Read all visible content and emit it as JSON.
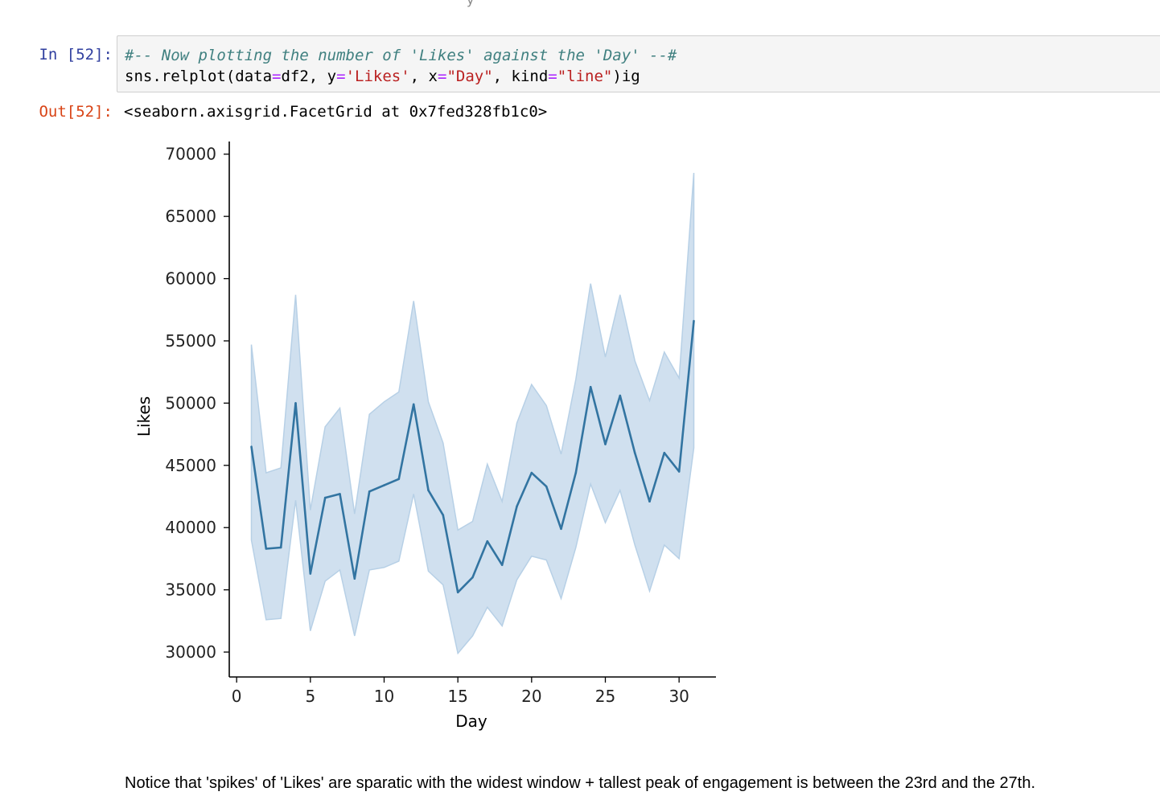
{
  "input_cell": {
    "prompt": "In [52]:",
    "comment": "#-- Now plotting the number of 'Likes' against the 'Day' --#",
    "code_tokens": {
      "t1": "sns.relplot(data",
      "t2": "=",
      "t3": "df2, y",
      "t4": "=",
      "t5": "'Likes'",
      "t6": ", x",
      "t7": "=",
      "t8": "\"Day\"",
      "t9": ", kind",
      "t10": "=",
      "t11": "\"line\"",
      "t12": ")ig"
    }
  },
  "output_cell": {
    "prompt": "Out[52]:",
    "text": "<seaborn.axisgrid.FacetGrid at 0x7fed328fb1c0>"
  },
  "note": "Notice that 'spikes' of 'Likes' are sparatic with the widest window + tallest peak of engagement is between the 23rd and the 27th.",
  "colors": {
    "line": "#3274a1",
    "band": "#b7d0e6",
    "axis": "#000000"
  },
  "chart_data": {
    "type": "line",
    "xlabel": "Day",
    "ylabel": "Likes",
    "xlim": [
      -0.5,
      32.5
    ],
    "ylim": [
      28000,
      70500
    ],
    "x_ticks": [
      0,
      5,
      10,
      15,
      20,
      25,
      30
    ],
    "y_ticks": [
      30000,
      35000,
      40000,
      45000,
      50000,
      55000,
      60000,
      65000,
      70000
    ],
    "grid": false,
    "x": [
      1,
      2,
      3,
      4,
      5,
      6,
      7,
      8,
      9,
      10,
      11,
      12,
      13,
      14,
      15,
      16,
      17,
      18,
      19,
      20,
      21,
      22,
      23,
      24,
      25,
      26,
      27,
      28,
      29,
      30,
      31
    ],
    "series": [
      {
        "values": [
          46500,
          38300,
          38400,
          50000,
          36300,
          42400,
          42700,
          35900,
          42900,
          43400,
          43900,
          49900,
          43000,
          41000,
          34800,
          36000,
          38900,
          37000,
          41700,
          44400,
          43300,
          39900,
          44400,
          51300,
          46700,
          50600,
          46000,
          42100,
          46000,
          44500,
          56600
        ],
        "ci_low": [
          39000,
          32600,
          32700,
          42200,
          31700,
          35700,
          36600,
          31300,
          36600,
          36800,
          37300,
          42700,
          36500,
          35400,
          29900,
          31300,
          33600,
          32100,
          35800,
          37700,
          37400,
          34300,
          38400,
          43500,
          40400,
          43000,
          38600,
          34900,
          38600,
          37500,
          46400
        ],
        "ci_high": [
          54700,
          44400,
          44800,
          58700,
          41400,
          48100,
          49600,
          41100,
          49100,
          50100,
          50900,
          58200,
          50100,
          46800,
          39800,
          40500,
          45100,
          42100,
          48400,
          51500,
          49800,
          45900,
          51900,
          59600,
          53700,
          58700,
          53400,
          50200,
          54100,
          52000,
          68500
        ]
      }
    ]
  }
}
